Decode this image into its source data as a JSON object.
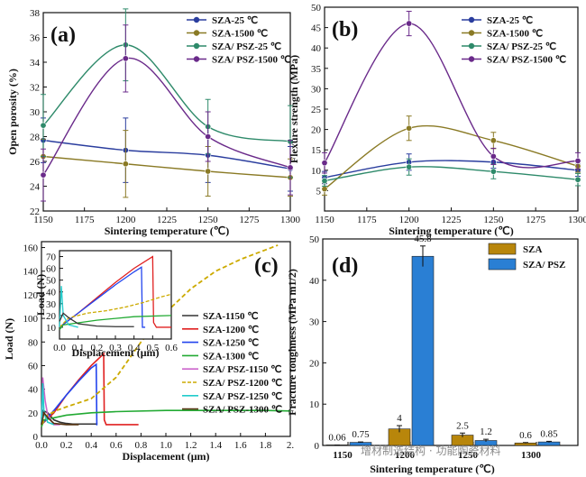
{
  "colors": {
    "blue": "#2a3d9e",
    "gold": "#8a7a25",
    "teal": "#2e8a6a",
    "purple": "#6a2a8a",
    "gray": "#333333",
    "red": "#e02020",
    "royal": "#2244ee",
    "green": "#22aa33",
    "violet": "#cc66cc",
    "amber": "#ccaa00",
    "cyan": "#22cccc",
    "brown": "#553311",
    "barGold": "#b8860b",
    "barBlue": "#2a7fd4"
  },
  "watermark": "增材制造结构 · 功能陶瓷材料",
  "chart_data": [
    {
      "panel": "(a)",
      "type": "line",
      "xlabel": "Sintering temperature (℃)",
      "ylabel": "Open porosity (%)",
      "xlim": [
        1150,
        1300
      ],
      "ylim": [
        22,
        38
      ],
      "xticks": [
        1150,
        1175,
        1200,
        1225,
        1250,
        1275,
        1300
      ],
      "yticks": [
        22,
        24,
        26,
        28,
        30,
        32,
        34,
        36,
        38
      ],
      "legend": "top-right",
      "x": [
        1150,
        1200,
        1250,
        1300
      ],
      "series": [
        {
          "name": "SZA-25 ℃",
          "color": "blue",
          "values": [
            27.7,
            26.9,
            26.5,
            25.4
          ],
          "err": [
            1.8,
            2.6,
            2.2,
            1.8
          ]
        },
        {
          "name": "SZA-1500 ℃",
          "color": "gold",
          "values": [
            26.4,
            25.8,
            25.2,
            24.7
          ],
          "err": [
            1.4,
            2.7,
            2.0,
            1.5
          ]
        },
        {
          "name": "SZA/ PSZ-25 ℃",
          "color": "teal",
          "values": [
            28.9,
            35.4,
            28.8,
            27.6
          ],
          "err": [
            2.5,
            2.9,
            2.2,
            2.9
          ]
        },
        {
          "name": "SZA/ PSZ-1500 ℃",
          "color": "purple",
          "values": [
            24.9,
            34.3,
            28.0,
            25.5
          ],
          "err": [
            2.1,
            2.7,
            2.0,
            2.2
          ]
        }
      ]
    },
    {
      "panel": "(b)",
      "type": "line",
      "xlabel": "Sintering temperature (℃)",
      "ylabel": "Flexure strength (MPa)",
      "xlim": [
        1150,
        1300
      ],
      "ylim": [
        0,
        50
      ],
      "xticks": [
        1150,
        1175,
        1200,
        1225,
        1250,
        1275,
        1300
      ],
      "yticks": [
        5,
        10,
        15,
        20,
        25,
        30,
        35,
        40,
        45,
        50
      ],
      "legend": "top-right",
      "x": [
        1150,
        1200,
        1250,
        1300
      ],
      "series": [
        {
          "name": "SZA-25 ℃",
          "color": "blue",
          "values": [
            8.2,
            12.0,
            12.0,
            10.0
          ],
          "err": [
            1.5,
            2.0,
            1.5,
            1.5
          ]
        },
        {
          "name": "SZA-1500 ℃",
          "color": "gold",
          "values": [
            5.4,
            20.3,
            17.3,
            11.0
          ],
          "err": [
            1.5,
            3.0,
            2.0,
            1.5
          ]
        },
        {
          "name": "SZA/ PSZ-25 ℃",
          "color": "teal",
          "values": [
            7.4,
            10.8,
            9.7,
            7.7
          ],
          "err": [
            1.3,
            2.0,
            1.8,
            1.5
          ]
        },
        {
          "name": "SZA/ PSZ-1500 ℃",
          "color": "purple",
          "values": [
            11.8,
            46.0,
            13.4,
            12.3
          ],
          "err": [
            2.5,
            3.0,
            2.0,
            2.0
          ]
        }
      ]
    },
    {
      "panel": "(c)",
      "type": "line",
      "xlabel": "Displacement (μm)",
      "ylabel": "Load (N)",
      "xlim": [
        0,
        2.0
      ],
      "ylim": [
        0,
        165
      ],
      "xticks": [
        0.0,
        0.2,
        0.4,
        0.6,
        0.8,
        1.0,
        1.2,
        1.4,
        1.6,
        1.8,
        2.0
      ],
      "xtick_labels": [
        "0.0",
        "0.2",
        "0.4",
        "0.6",
        "0.8",
        "1.0",
        "1.2",
        "1.4",
        "1.6",
        "1.8",
        "2."
      ],
      "yticks": [
        0,
        20,
        40,
        60,
        80,
        100,
        120,
        140,
        160
      ],
      "legend": "center-right",
      "series": [
        {
          "name": "SZA-1150 ℃",
          "color": "gray",
          "x": [
            0,
            0.01,
            0.05,
            0.1,
            0.15,
            0.2,
            0.25,
            0.3,
            0.35,
            0.4,
            0.45
          ],
          "values": [
            15,
            22,
            20,
            14,
            12,
            11,
            10.5,
            10.5,
            10.5,
            10.5,
            10.5
          ]
        },
        {
          "name": "SZA-1200 ℃",
          "color": "red",
          "x": [
            0,
            0.1,
            0.2,
            0.3,
            0.4,
            0.5,
            0.505,
            0.52,
            0.6,
            0.7,
            0.78
          ],
          "values": [
            10,
            20,
            35,
            48,
            60,
            70,
            14,
            10,
            10,
            10,
            10
          ]
        },
        {
          "name": "SZA-1250 ℃",
          "color": "royal",
          "x": [
            0,
            0.1,
            0.2,
            0.3,
            0.4,
            0.44,
            0.445,
            0.45
          ],
          "values": [
            10,
            22,
            35,
            47,
            58,
            61,
            10,
            10
          ]
        },
        {
          "name": "SZA-1300 ℃",
          "color": "green",
          "x": [
            0,
            0.02,
            0.2,
            0.4,
            0.6,
            1.0,
            1.4,
            1.8,
            2.0
          ],
          "values": [
            8,
            14,
            18,
            20,
            21,
            22,
            22,
            22,
            21.5
          ]
        },
        {
          "name": "SZA/ PSZ-1150 ℃",
          "color": "violet",
          "x": [
            0,
            0.01,
            0.03,
            0.05,
            0.1,
            0.15
          ],
          "values": [
            10,
            50,
            30,
            18,
            10,
            10
          ]
        },
        {
          "name": "SZA/ PSZ-1200 ℃",
          "color": "amber",
          "x": [
            0,
            0.05,
            0.12,
            0.2,
            0.4,
            0.6,
            0.8,
            1.0,
            1.2,
            1.4,
            1.6,
            1.8,
            1.9
          ],
          "values": [
            10,
            18,
            22,
            25,
            32,
            50,
            80,
            105,
            125,
            140,
            150,
            158,
            162
          ]
        },
        {
          "name": "SZA/ PSZ-1250 ℃",
          "color": "cyan",
          "x": [
            0,
            0.01,
            0.02,
            0.05,
            0.1
          ],
          "values": [
            10,
            45,
            20,
            12,
            10
          ]
        },
        {
          "name": "SZA/ PSZ-1300 ℃",
          "color": "brown",
          "x": [
            0,
            0.02,
            0.05,
            0.1,
            0.2,
            0.3
          ],
          "values": [
            10,
            20,
            16,
            11,
            10,
            10
          ]
        }
      ],
      "inset": {
        "xlabel": "Displacement (μm)",
        "ylabel": "Load (N)",
        "xlim": [
          0,
          0.6
        ],
        "ylim": [
          0,
          75
        ],
        "xticks": [
          0.0,
          0.1,
          0.2,
          0.3,
          0.4,
          0.5,
          0.6
        ],
        "xtick_labels": [
          "0.0",
          "0.1",
          "0.2",
          "0.3",
          "0.4",
          "0.5",
          "0.6"
        ],
        "yticks": [
          10,
          20,
          30,
          40,
          50,
          60,
          70
        ],
        "series": [
          {
            "color": "red",
            "x": [
              0,
              0.1,
              0.2,
              0.3,
              0.4,
              0.5,
              0.505,
              0.52,
              0.6
            ],
            "values": [
              10,
              22,
              35,
              48,
              60,
              70,
              14,
              10,
              10
            ]
          },
          {
            "color": "royal",
            "x": [
              0,
              0.1,
              0.2,
              0.3,
              0.4,
              0.44,
              0.445,
              0.46
            ],
            "values": [
              10,
              22,
              34,
              46,
              57,
              61,
              10,
              10
            ]
          },
          {
            "color": "green",
            "x": [
              0,
              0.02,
              0.2,
              0.4,
              0.6
            ],
            "values": [
              8,
              12,
              16,
              19,
              20
            ]
          },
          {
            "color": "amber",
            "x": [
              0,
              0.05,
              0.15,
              0.25,
              0.35,
              0.45,
              0.55,
              0.6
            ],
            "values": [
              10,
              18,
              22,
              24,
              27,
              31,
              36,
              38
            ]
          },
          {
            "color": "cyan",
            "x": [
              0,
              0.01,
              0.02,
              0.05,
              0.1
            ],
            "values": [
              10,
              45,
              20,
              12,
              10
            ]
          },
          {
            "color": "gray",
            "x": [
              0,
              0.02,
              0.05,
              0.1,
              0.2,
              0.3,
              0.4
            ],
            "values": [
              15,
              22,
              18,
              13,
              11,
              10.5,
              10.5
            ]
          }
        ]
      }
    },
    {
      "panel": "(d)",
      "type": "bar",
      "xlabel": "Sintering temperature (℃)",
      "ylabel": "Fracture toughness (MPa m1/2)",
      "ylim": [
        0,
        50
      ],
      "yticks": [
        0,
        10,
        20,
        30,
        40,
        50
      ],
      "legend": "top-right",
      "categories": [
        "1150",
        "1200",
        "1250",
        "1300"
      ],
      "series": [
        {
          "name": "SZA",
          "color": "barGold",
          "values": [
            0.06,
            4,
            2.5,
            0.6
          ],
          "labels": [
            "0.06",
            "4",
            "2.5",
            "0.6"
          ],
          "err": [
            0.05,
            0.8,
            0.5,
            0.1
          ]
        },
        {
          "name": "SZA/ PSZ",
          "color": "barBlue",
          "values": [
            0.75,
            45.8,
            1.2,
            0.85
          ],
          "labels": [
            "0.75",
            "45.8",
            "1.2",
            "0.85"
          ],
          "err": [
            0.1,
            2.5,
            0.3,
            0.15
          ]
        }
      ]
    }
  ]
}
